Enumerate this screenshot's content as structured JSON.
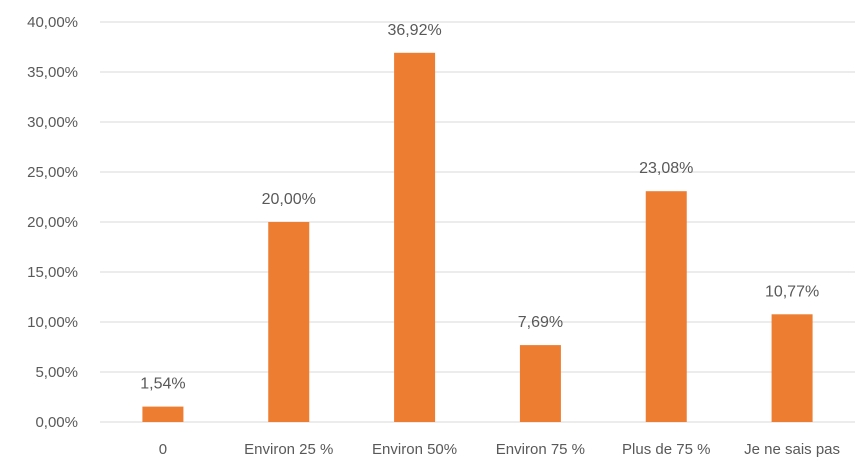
{
  "chart_data": {
    "type": "bar",
    "title": "",
    "xlabel": "",
    "ylabel": "",
    "categories": [
      "0",
      "Environ 25 %",
      "Environ 50%",
      "Environ 75 %",
      "Plus de 75 %",
      "Je ne sais pas"
    ],
    "values": [
      1.54,
      20.0,
      36.92,
      7.69,
      23.08,
      10.77
    ],
    "data_labels": [
      "1,54%",
      "20,00%",
      "36,92%",
      "7,69%",
      "23,08%",
      "10,77%"
    ],
    "y_ticks": [
      0,
      5,
      10,
      15,
      20,
      25,
      30,
      35,
      40
    ],
    "y_tick_labels": [
      "0,00%",
      "5,00%",
      "10,00%",
      "15,00%",
      "20,00%",
      "25,00%",
      "30,00%",
      "35,00%",
      "40,00%"
    ],
    "ylim": [
      0,
      40
    ],
    "grid": true,
    "legend": "none",
    "colors": {
      "bar": "#ED7D31",
      "grid": "#D9D9D9",
      "text": "#595959"
    }
  }
}
